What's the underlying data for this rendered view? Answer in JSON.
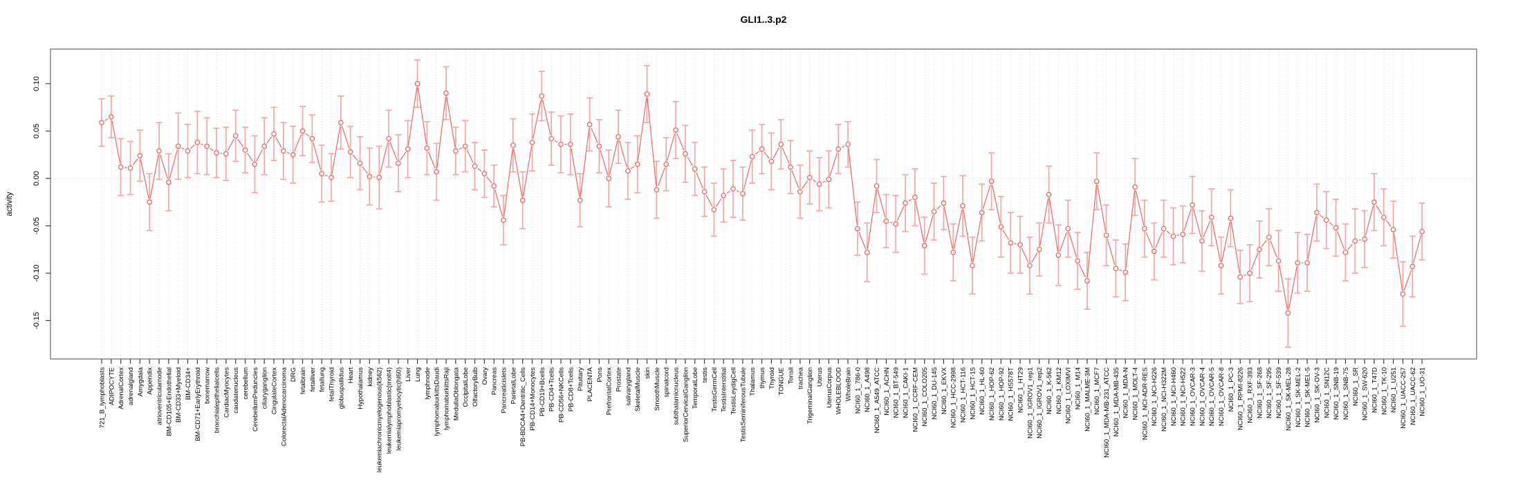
{
  "chart_data": {
    "type": "scatter",
    "title": "GLI1..3.p2",
    "xlabel": "",
    "ylabel": "activity",
    "ylim": [
      -0.19,
      0.137
    ],
    "ytick_values": [
      0.1,
      0.05,
      0.0,
      -0.05,
      -0.1,
      -0.15
    ],
    "ytick_labels": [
      "0.10",
      "0.05",
      "0.00",
      "-0.05",
      "-0.10",
      "-0.15"
    ],
    "legend": "none",
    "grid": "vertical dotted line per category; horizontal dotted line at y=0",
    "marker": "open-circle with error bars, connected by line segments",
    "colors": {
      "point": "#f4655e",
      "errorbar": "#f6a6a2",
      "grid": "#dedede",
      "zero_line": "#d0d0d0",
      "box": "#8a8a8a",
      "tick": "#3c3c3c"
    },
    "categories": [
      "721_B_lymphoblasts",
      "ADIPOCYTE",
      "AdrenalCortex",
      "adrenalgland",
      "Amygdala",
      "Appendix",
      "atrioventricularnode",
      "BM-CD105+Endothelial",
      "BM-CD33+Myeloid",
      "BM-CD34+",
      "BM-CD71+EarlyErythroid",
      "bonemarrow",
      "bronchialepithelialcells",
      "CardiacMyocytes",
      "caudatenucleus",
      "cerebellum",
      "CerebellumPeduncles",
      "ciliaryganglion",
      "CingulateCortex",
      "ColorectalAdenocarcinoma",
      "DRG",
      "fetalbrain",
      "fetalliver",
      "fetallung",
      "fetalThyroid",
      "globuspallidus",
      "Heart",
      "Hypothalamus",
      "kidney",
      "leukemiachronicmyelogenous(k562)",
      "leukemialymphoblastic(molt4)",
      "leukemiapromyelocytic(hl60)",
      "Liver",
      "Lung",
      "lymphnode",
      "lymphomaburkittsDaudi",
      "lymphomaburkittsRaji",
      "MedullaOblongata",
      "OccipitalLobe",
      "OlfactoryBulb",
      "Ovary",
      "Pancreas",
      "Pancreaticislets",
      "ParietalLobe",
      "PB-BDCA4+Dentritic_Cells",
      "PB-CD14+Monocytes",
      "PB-CD19+Bcells",
      "PB-CD4+Tcells",
      "PB-CD56+NKCells",
      "PB-CD8+Tcells",
      "Pituitary",
      "PLACENTA",
      "Pons",
      "PrefrontalCortex",
      "Prostate",
      "salivarygland",
      "SkeletalMuscle",
      "skin",
      "SmoothMuscle",
      "spinalcord",
      "subthalamicnucleus",
      "SuperiorCervicalGanglion",
      "TemporalLobe",
      "testis",
      "TestisGermCell",
      "TestisInterstitial",
      "TestisLeydigCell",
      "TestisSeminiferousTubule",
      "Thalamus",
      "thymus",
      "Thyroid",
      "TONGUE",
      "Tonsil",
      "trachea",
      "TrigeminalGanglion",
      "Uterus",
      "UterusCorpus",
      "WHOLEBLOOD",
      "WholeBrain",
      "NCI60_1_786-0",
      "NCI60_1_A498",
      "NCI60_1_A549_ATCC",
      "NCI60_1_ACHN",
      "NCI60_1_BT-549",
      "NCI60_1_CAKI-1",
      "NCI60_1_CCRF-CEM",
      "NCI60_1_COLO205",
      "NCI60_1_DU-145",
      "NCI60_1_EKVX",
      "NCI60_1_HCC-2998",
      "NCI60_1_HCT-116",
      "NCI60_1_HCT-15",
      "NCI60_1_HL-60",
      "NCI60_1_HOP-62",
      "NCI60_1_HOP-92",
      "NCI60_1_HS578T",
      "NCI60_1_HT29",
      "NCI60_1_IGROV1_rep1",
      "NCI60_1_IGROV1_rep2",
      "NCI60_1_K-562",
      "NCI60_1_KM12",
      "NCI60_1_LOXIMVI",
      "NCI60_1_M14",
      "NCI60_1_MALME-3M",
      "NCI60_1_MCF7",
      "NCI60_1_MDA-MB-231_ATCC",
      "NCI60_1_MDA-MB-435",
      "NCI60_1_MDA-N",
      "NCI60_1_MOLT-4",
      "NCI60_1_NCI-ADR-RES",
      "NCI60_1_NCI-H226",
      "NCI60_1_NCI-H322M",
      "NCI60_1_NCI-H460",
      "NCI60_1_NCI-H522",
      "NCI60_1_OVCAR-3",
      "NCI60_1_OVCAR-4",
      "NCI60_1_OVCAR-5",
      "NCI60_1_OVCAR-8",
      "NCI60_1_PC-3",
      "NCI60_1_RPMI-8226",
      "NCI60_1_RXF-393",
      "NCI60_1_SF-268",
      "NCI60_1_SF-295",
      "NCI60_1_SF-539",
      "NCI60_1_SK-MEL-28",
      "NCI60_1_SK-MEL-2",
      "NCI60_1_SK-MEL-5",
      "NCI60_1_SK-OV-3",
      "NCI60_1_SN12C",
      "NCI60_1_SNB-19",
      "NCI60_1_SNB-75",
      "NCI60_1_SR",
      "NCI60_1_SW-620",
      "NCI60_1_T47D",
      "NCI60_1_TK-10",
      "NCI60_1_U251",
      "NCI60_1_UACC-257",
      "NCI60_1_UACC-62",
      "NCI60_1_UO-31"
    ],
    "values": [
      0.059,
      0.065,
      0.012,
      0.011,
      0.024,
      -0.025,
      0.029,
      -0.004,
      0.034,
      0.029,
      0.038,
      0.034,
      0.027,
      0.026,
      0.045,
      0.03,
      0.015,
      0.034,
      0.047,
      0.029,
      0.025,
      0.05,
      0.042,
      0.005,
      0.001,
      0.059,
      0.028,
      0.016,
      0.002,
      0.001,
      0.042,
      0.016,
      0.031,
      0.1,
      0.032,
      0.007,
      0.09,
      0.029,
      0.034,
      0.013,
      0.005,
      -0.008,
      -0.044,
      0.035,
      -0.023,
      0.038,
      0.087,
      0.042,
      0.036,
      0.036,
      -0.023,
      0.057,
      0.034,
      0.0,
      0.044,
      0.008,
      0.015,
      0.089,
      -0.012,
      0.015,
      0.051,
      0.026,
      0.01,
      -0.014,
      -0.033,
      -0.018,
      -0.011,
      -0.016,
      0.023,
      0.031,
      0.018,
      0.036,
      0.012,
      -0.014,
      0.001,
      -0.006,
      -0.001,
      0.031,
      0.036,
      -0.053,
      -0.078,
      -0.008,
      -0.045,
      -0.048,
      -0.026,
      -0.02,
      -0.071,
      -0.035,
      -0.026,
      -0.078,
      -0.029,
      -0.092,
      -0.036,
      -0.003,
      -0.051,
      -0.068,
      -0.07,
      -0.092,
      -0.075,
      -0.017,
      -0.081,
      -0.053,
      -0.087,
      -0.108,
      -0.003,
      -0.06,
      -0.095,
      -0.099,
      -0.009,
      -0.053,
      -0.077,
      -0.053,
      -0.061,
      -0.059,
      -0.028,
      -0.066,
      -0.041,
      -0.092,
      -0.042,
      -0.104,
      -0.1,
      -0.075,
      -0.062,
      -0.087,
      -0.142,
      -0.089,
      -0.089,
      -0.036,
      -0.044,
      -0.052,
      -0.078,
      -0.066,
      -0.064,
      -0.025,
      -0.041,
      -0.054,
      -0.122,
      -0.093,
      -0.056
    ],
    "errors": [
      0.025,
      0.022,
      0.03,
      0.028,
      0.027,
      0.03,
      0.03,
      0.03,
      0.035,
      0.028,
      0.033,
      0.03,
      0.026,
      0.028,
      0.027,
      0.024,
      0.03,
      0.03,
      0.028,
      0.03,
      0.03,
      0.026,
      0.025,
      0.03,
      0.025,
      0.028,
      0.027,
      0.028,
      0.03,
      0.033,
      0.03,
      0.03,
      0.03,
      0.025,
      0.028,
      0.03,
      0.028,
      0.025,
      0.027,
      0.025,
      0.025,
      0.022,
      0.026,
      0.028,
      0.03,
      0.03,
      0.026,
      0.028,
      0.03,
      0.032,
      0.028,
      0.028,
      0.028,
      0.03,
      0.028,
      0.03,
      0.03,
      0.03,
      0.03,
      0.028,
      0.03,
      0.03,
      0.028,
      0.026,
      0.028,
      0.028,
      0.03,
      0.028,
      0.028,
      0.026,
      0.03,
      0.026,
      0.028,
      0.028,
      0.028,
      0.028,
      0.03,
      0.026,
      0.024,
      0.028,
      0.031,
      0.028,
      0.028,
      0.03,
      0.03,
      0.03,
      0.03,
      0.03,
      0.028,
      0.03,
      0.032,
      0.03,
      0.03,
      0.03,
      0.032,
      0.032,
      0.03,
      0.03,
      0.028,
      0.03,
      0.032,
      0.03,
      0.03,
      0.03,
      0.03,
      0.032,
      0.03,
      0.03,
      0.03,
      0.03,
      0.03,
      0.03,
      0.03,
      0.03,
      0.03,
      0.032,
      0.03,
      0.03,
      0.03,
      0.028,
      0.03,
      0.03,
      0.03,
      0.032,
      0.036,
      0.032,
      0.03,
      0.03,
      0.03,
      0.03,
      0.03,
      0.034,
      0.03,
      0.03,
      0.03,
      0.03,
      0.034,
      0.032,
      0.03
    ]
  }
}
